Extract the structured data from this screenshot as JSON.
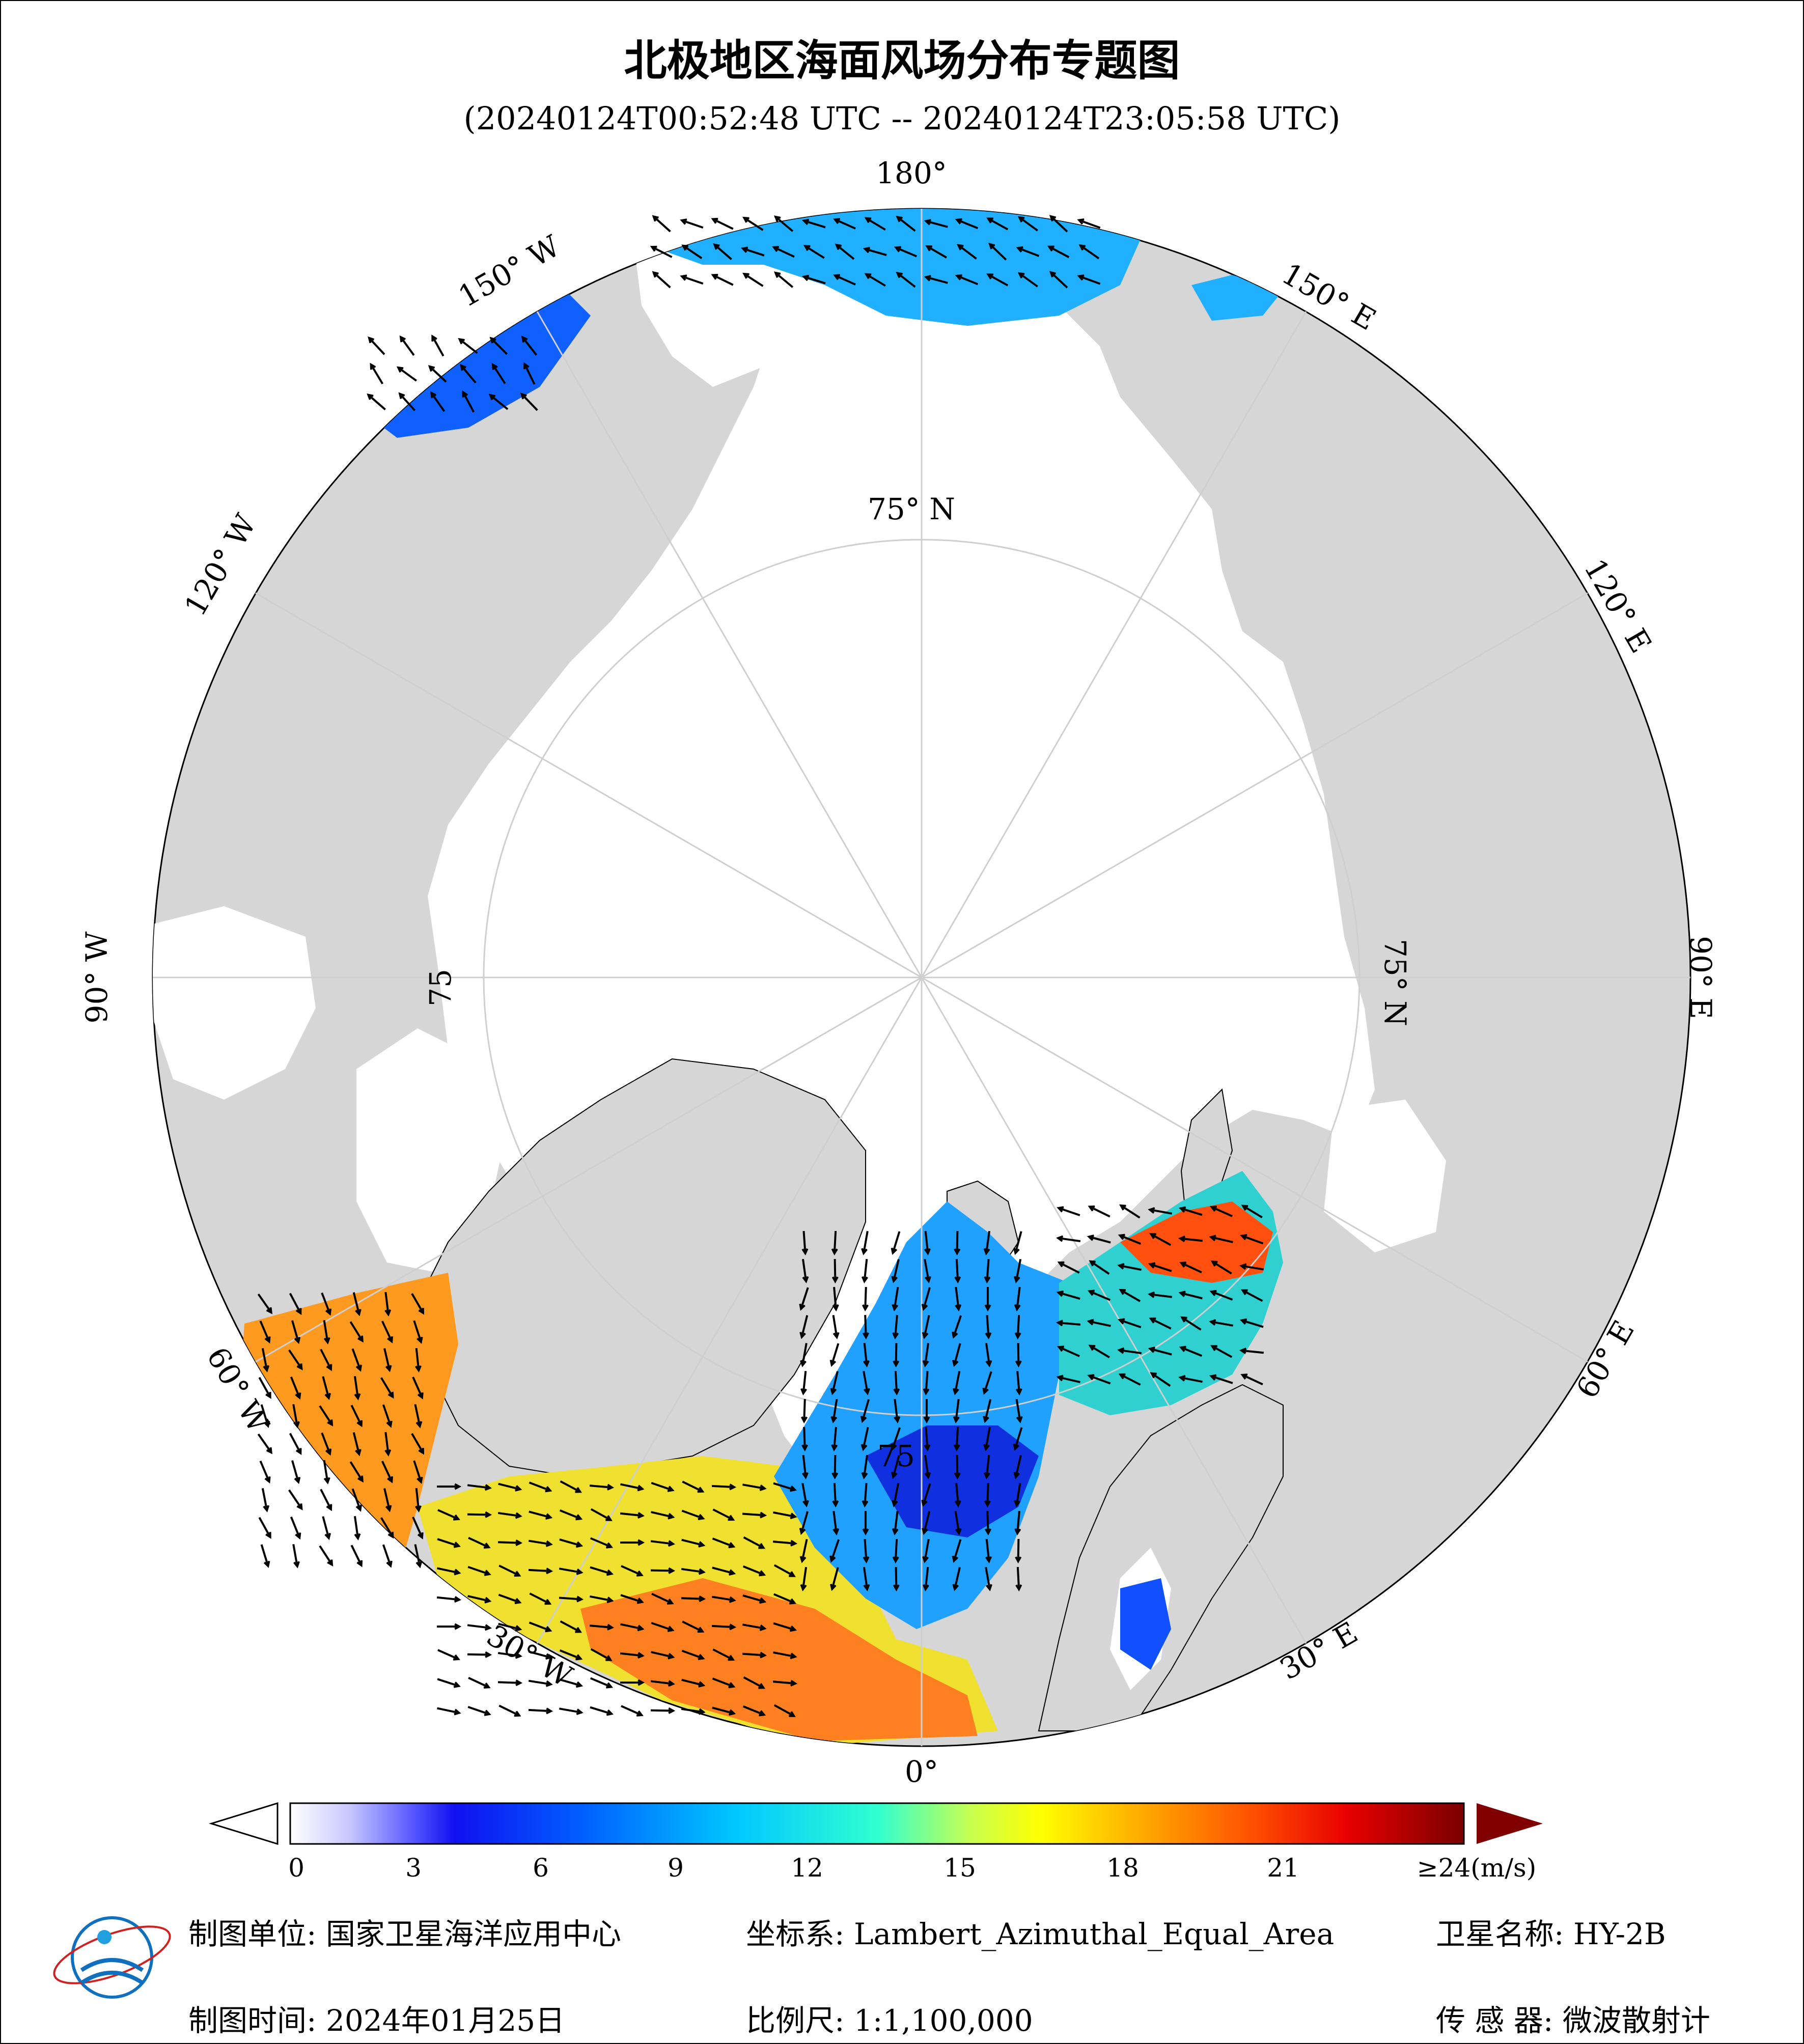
{
  "title": "北极地区海面风场分布专题图",
  "subtitle": "(20240124T00:52:48 UTC -- 20240124T23:05:58 UTC)",
  "map": {
    "longitude_labels": {
      "lon_180": "180°",
      "lon_150e": "150° E",
      "lon_120e": "120° E",
      "lon_90e": "90° E",
      "lon_60e": "60° E",
      "lon_30e": "30° E",
      "lon_0": "0°",
      "lon_30w": "30° W",
      "lon_60w": "60° W",
      "lon_90w": "90° W",
      "lon_120w": "120° W",
      "lon_150w": "150° W"
    },
    "latitude_labels": {
      "top": "75° N",
      "right": "75° N",
      "left": "75",
      "inner": "75"
    },
    "colors": {
      "land": "#d6d6d6",
      "ocean_ice": "#ffffff",
      "graticule": "#cfcfcf"
    }
  },
  "colorbar": {
    "ticks": [
      "0",
      "3",
      "6",
      "9",
      "12",
      "15",
      "18",
      "21",
      "≥24(m/s)"
    ],
    "min": 0,
    "max": 24,
    "unit": "m/s",
    "colors": [
      "#ffffff",
      "#cfd0ff",
      "#8c8cff",
      "#1a1aff",
      "#0050ff",
      "#00a0ff",
      "#00f0ff",
      "#7fffb0",
      "#e8ff30",
      "#ffd000",
      "#ff8000",
      "#ff2000",
      "#d00000",
      "#8b0000"
    ]
  },
  "footer": {
    "unit": "制图单位: 国家卫星海洋应用中心",
    "coords": "坐标系: Lambert_Azimuthal_Equal_Area",
    "satellite": "卫星名称: HY-2B",
    "date": "制图时间: 2024年01月25日",
    "scale": "比例尺: 1:1,100,000",
    "sensor": "传 感 器: 微波散射计"
  }
}
